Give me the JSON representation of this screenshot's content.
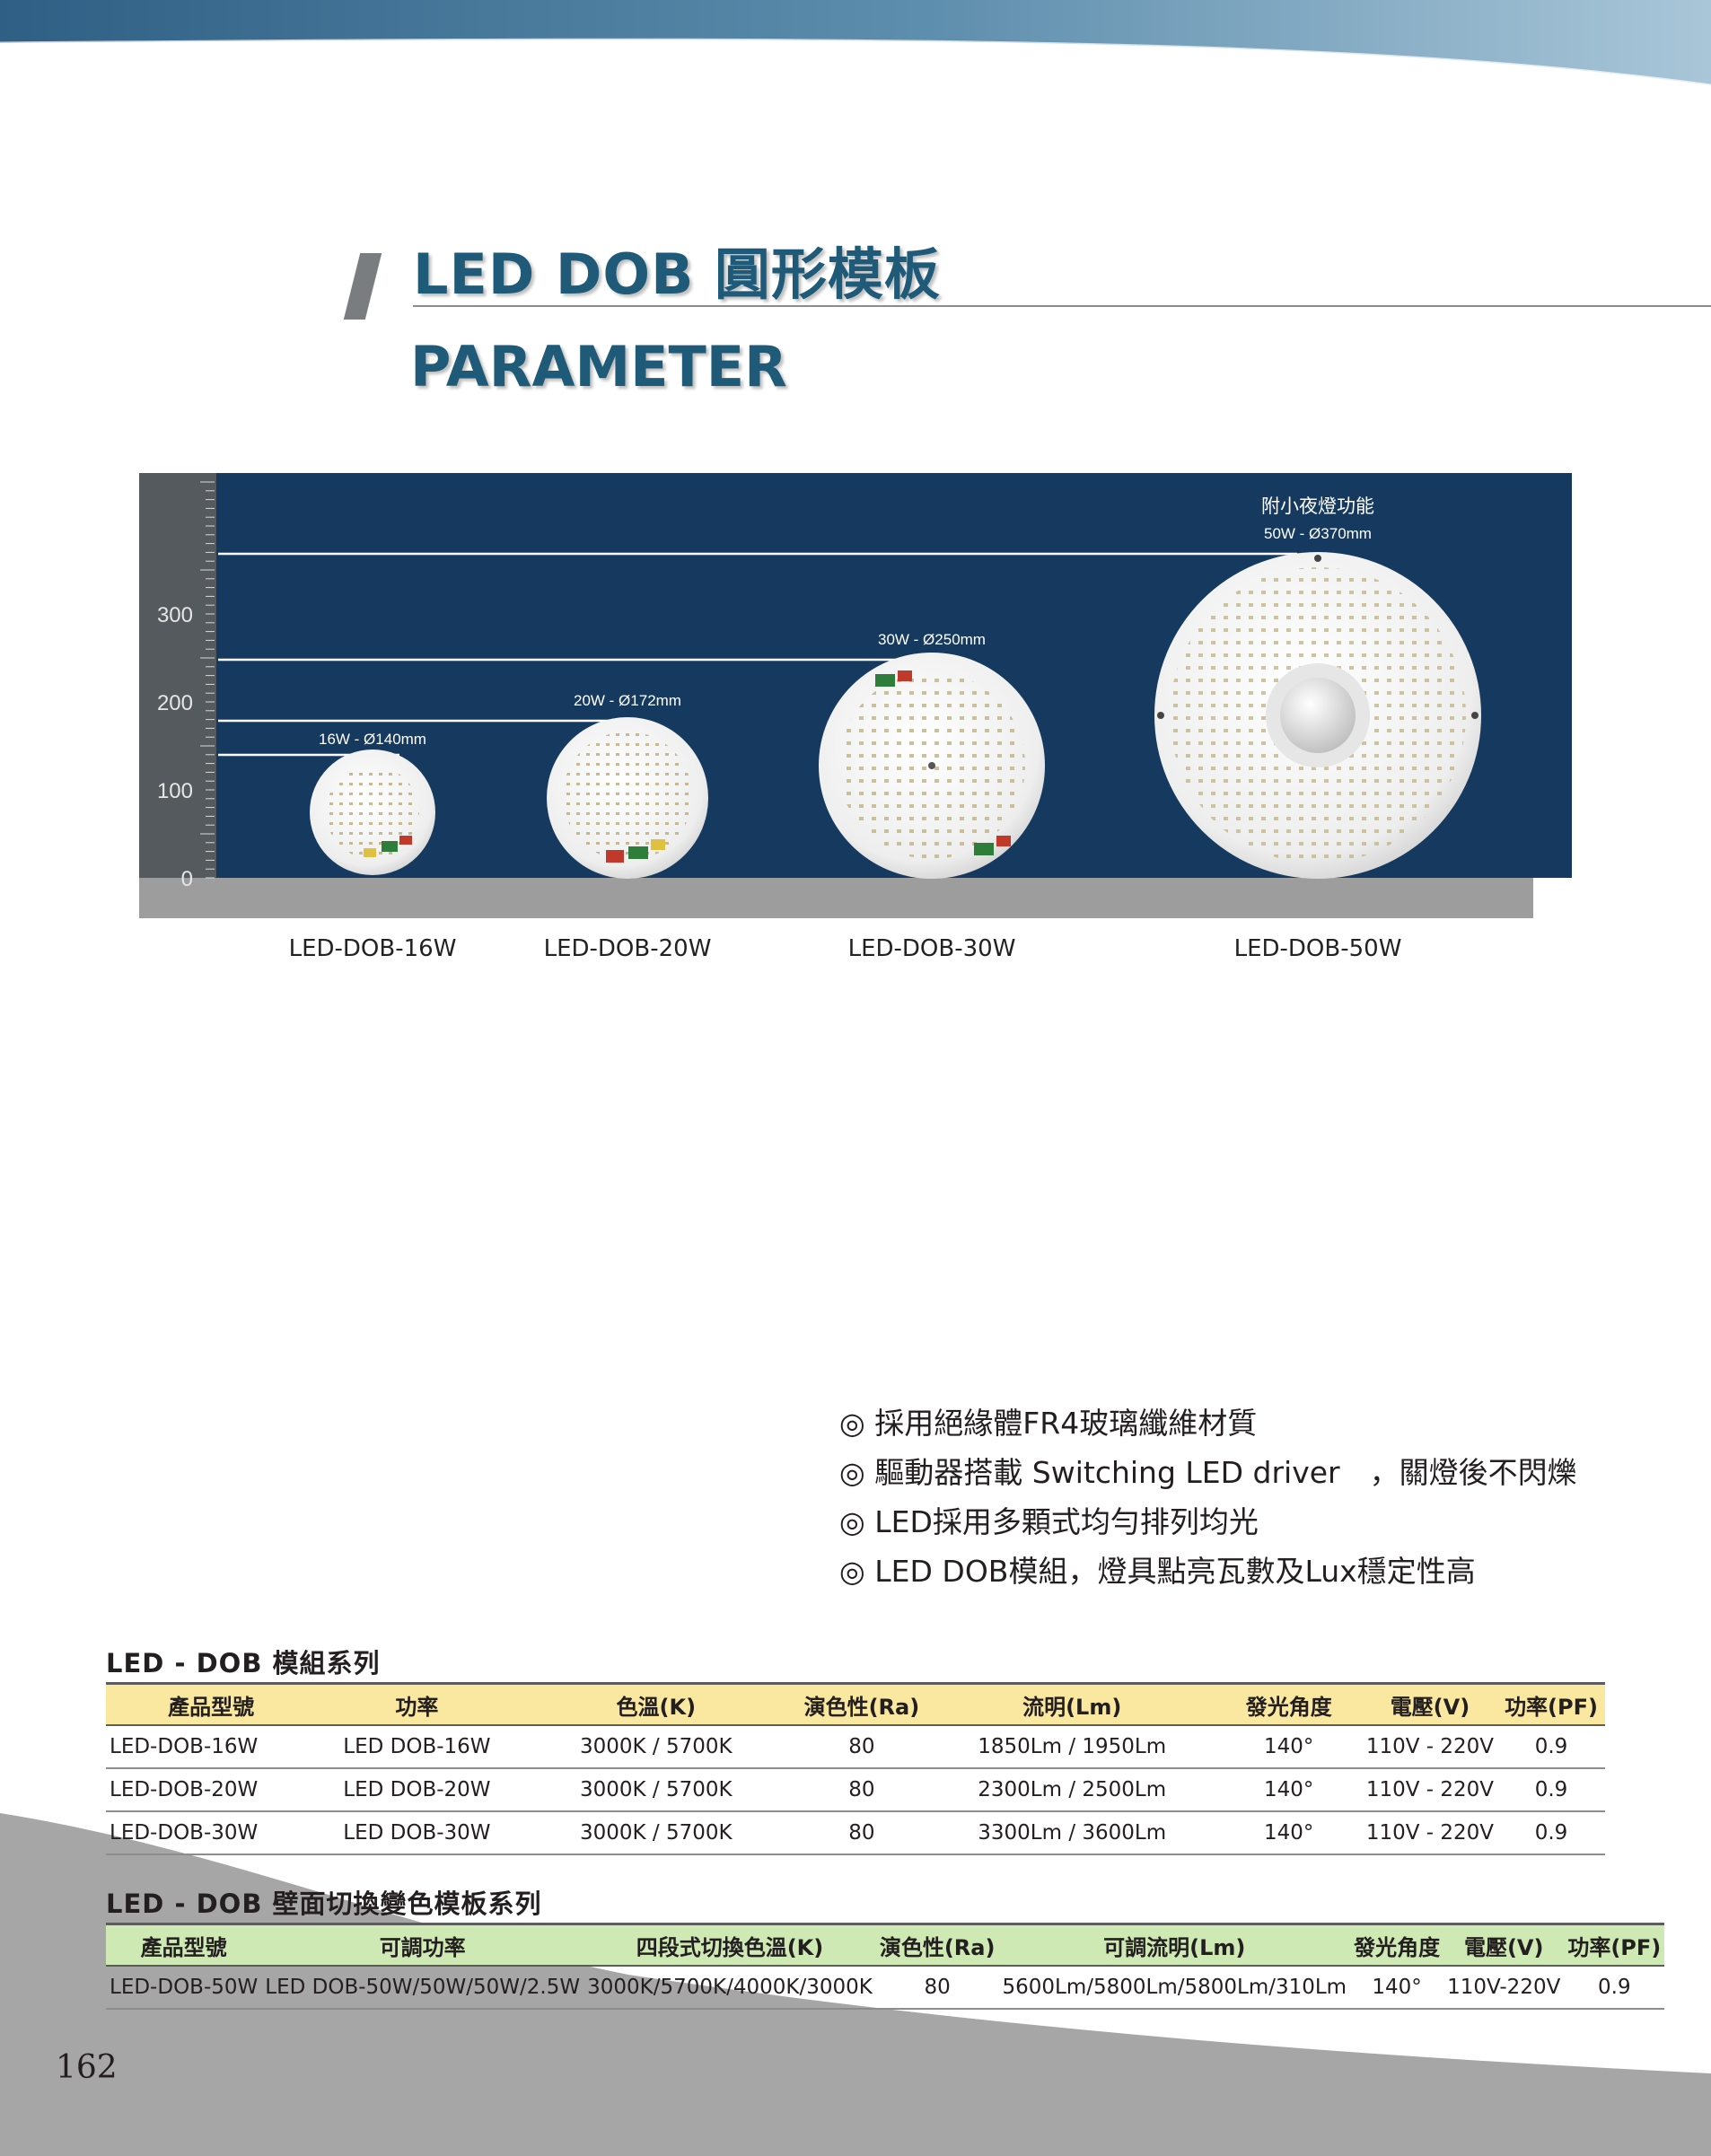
{
  "header": {
    "title": "LED DOB 圓形模板",
    "subtitle": "PARAMETER"
  },
  "colors": {
    "title_blue": "#1f5a78",
    "chart_background": "#163a5f",
    "table1_header": "#fbe8a0",
    "table2_header": "#cfe9b5"
  },
  "diagram": {
    "scale_ticks": [
      "300",
      "200",
      "100",
      "0"
    ],
    "note": "附小夜燈功能",
    "modules": [
      {
        "size_label": "16W - Ø140mm",
        "model": "LED-DOB-16W",
        "diameter_mm": 140
      },
      {
        "size_label": "20W - Ø172mm",
        "model": "LED-DOB-20W",
        "diameter_mm": 172
      },
      {
        "size_label": "30W - Ø250mm",
        "model": "LED-DOB-30W",
        "diameter_mm": 250
      },
      {
        "size_label": "50W - Ø370mm",
        "model": "LED-DOB-50W",
        "diameter_mm": 370
      }
    ]
  },
  "features": [
    "◎ 採用絕緣體FR4玻璃纖維材質",
    "◎ 驅動器搭載 Switching LED driver　，關燈後不閃爍",
    "◎ LED採用多顆式均勻排列均光",
    "◎ LED DOB模組，燈具點亮瓦數及Lux穩定性高"
  ],
  "table1": {
    "title": "LED - DOB 模組系列",
    "headers": [
      "產品型號",
      "功率",
      "色溫(K)",
      "演色性(Ra)",
      "流明(Lm)",
      "發光角度",
      "電壓(V)",
      "功率(PF)"
    ],
    "rows": [
      [
        "LED-DOB-16W",
        "LED DOB-16W",
        "3000K / 5700K",
        "80",
        "1850Lm / 1950Lm",
        "140°",
        "110V - 220V",
        "0.9"
      ],
      [
        "LED-DOB-20W",
        "LED DOB-20W",
        "3000K / 5700K",
        "80",
        "2300Lm / 2500Lm",
        "140°",
        "110V - 220V",
        "0.9"
      ],
      [
        "LED-DOB-30W",
        "LED DOB-30W",
        "3000K / 5700K",
        "80",
        "3300Lm / 3600Lm",
        "140°",
        "110V - 220V",
        "0.9"
      ]
    ]
  },
  "table2": {
    "title": "LED - DOB 壁面切換變色模板系列",
    "headers": [
      "產品型號",
      "可調功率",
      "四段式切換色溫(K)",
      "演色性(Ra)",
      "可調流明(Lm)",
      "發光角度",
      "電壓(V)",
      "功率(PF)"
    ],
    "rows": [
      [
        "LED-DOB-50W",
        "LED DOB-50W/50W/50W/2.5W",
        "3000K/5700K/4000K/3000K",
        "80",
        "5600Lm/5800Lm/5800Lm/310Lm",
        "140°",
        "110V-220V",
        "0.9"
      ]
    ]
  },
  "footer": {
    "page_number": "162"
  }
}
